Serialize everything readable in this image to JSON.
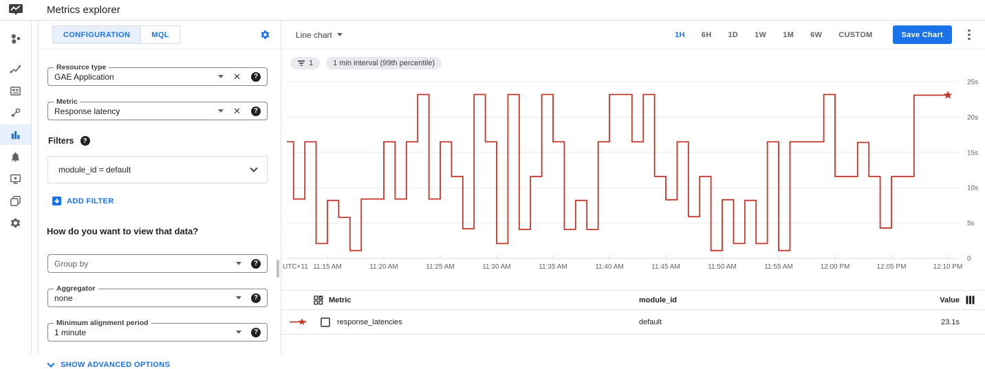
{
  "header": {
    "title": "Metrics explorer"
  },
  "sidebar": {
    "icons": [
      "monitoring-overview",
      "dashboards",
      "services-overview",
      "integrations",
      "metrics-explorer",
      "alerting",
      "uptime-checks",
      "groups",
      "monitoring-settings"
    ],
    "active": "metrics-explorer"
  },
  "config": {
    "tabs": {
      "configuration": "CONFIGURATION",
      "mql": "MQL",
      "active": "CONFIGURATION"
    },
    "resource_type": {
      "label": "Resource type",
      "value": "GAE Application"
    },
    "metric": {
      "label": "Metric",
      "value": "Response latency"
    },
    "filters": {
      "label": "Filters",
      "value": "module_id = default"
    },
    "add_filter": "ADD FILTER",
    "view_heading": "How do you want to view that data?",
    "group_by": {
      "placeholder": "Group by"
    },
    "aggregator": {
      "label": "Aggregator",
      "value": "none"
    },
    "alignment": {
      "label": "Minimum alignment period",
      "value": "1 minute"
    },
    "advanced": "SHOW ADVANCED OPTIONS"
  },
  "toolbar": {
    "chart_type": "Line chart",
    "ranges": [
      "1H",
      "6H",
      "1D",
      "1W",
      "1M",
      "6W",
      "CUSTOM"
    ],
    "active_range": "1H",
    "save": "Save Chart"
  },
  "chips": {
    "filter_count": "1",
    "interval": "1 min interval (99th percentile)"
  },
  "chart_data": {
    "type": "line",
    "subtype": "step-after",
    "unit": "seconds",
    "x_timezone_label": "UTC+11",
    "x_tick_labels": [
      "11:15 AM",
      "11:20 AM",
      "11:25 AM",
      "11:30 AM",
      "11:35 AM",
      "11:40 AM",
      "11:45 AM",
      "11:50 AM",
      "11:55 AM",
      "12:00 PM",
      "12:05 PM",
      "12:10 PM"
    ],
    "x_interval": "1 min",
    "x_start": "11:10 AM",
    "y_ticks": [
      25,
      20,
      15,
      10,
      5,
      0
    ],
    "y_tick_labels": [
      "25s",
      "20s",
      "15s",
      "10s",
      "5s",
      "0"
    ],
    "ylim": [
      0,
      26
    ],
    "grid": "horizontal",
    "legend_position": "table-below",
    "series": [
      {
        "name": "response_latencies",
        "module_id": "default",
        "color": "#c0362c",
        "end_marker": "star",
        "latest_value": "23.1s",
        "values": [
          16.5,
          16.5,
          8.4,
          16.5,
          2.1,
          8.2,
          5.8,
          1.1,
          8.4,
          8.4,
          16.5,
          8.4,
          16.5,
          23.2,
          8.4,
          16.5,
          11.6,
          4.2,
          23.2,
          16.5,
          2.1,
          23.2,
          4.1,
          11.6,
          23.2,
          16.5,
          4.1,
          8.2,
          4.1,
          16.5,
          23.2,
          23.2,
          16.5,
          23.2,
          11.6,
          8.3,
          16.5,
          5.9,
          11.6,
          1.1,
          8.3,
          2.1,
          8.2,
          2.1,
          16.5,
          1.1,
          16.5,
          16.5,
          16.5,
          23.2,
          11.6,
          11.6,
          16.4,
          11.6,
          4.3,
          11.6,
          11.6,
          23.1,
          23.1,
          23.1
        ]
      }
    ]
  },
  "table": {
    "columns": [
      "Metric",
      "module_id",
      "Value"
    ],
    "rows": [
      {
        "metric": "response_latencies",
        "module_id": "default",
        "value": "23.1s"
      }
    ]
  },
  "colors": {
    "accent": "#1a73e8",
    "accent_bg": "#e8f0fe",
    "series_red": "#c0362c",
    "border": "#e0e0e0",
    "chip_bg": "#e8eaed",
    "text": "#202124",
    "text_secondary": "#5f6368"
  }
}
